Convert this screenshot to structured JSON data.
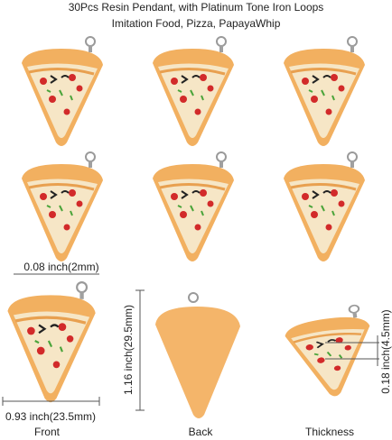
{
  "header": {
    "title_line1": "30Pcs Resin Pendant, with Platinum Tone Iron Loops",
    "title_line2": "Imitation Food, Pizza, PapayaWhip"
  },
  "dimensions": {
    "loop": "0.08 inch(2mm)",
    "height": "1.16 inch(29.5mm)",
    "width": "0.93 inch(23.5mm)",
    "thickness": "0.18 inch(4.5mm)"
  },
  "views": [
    "Front",
    "Back",
    "Thickness"
  ]
}
